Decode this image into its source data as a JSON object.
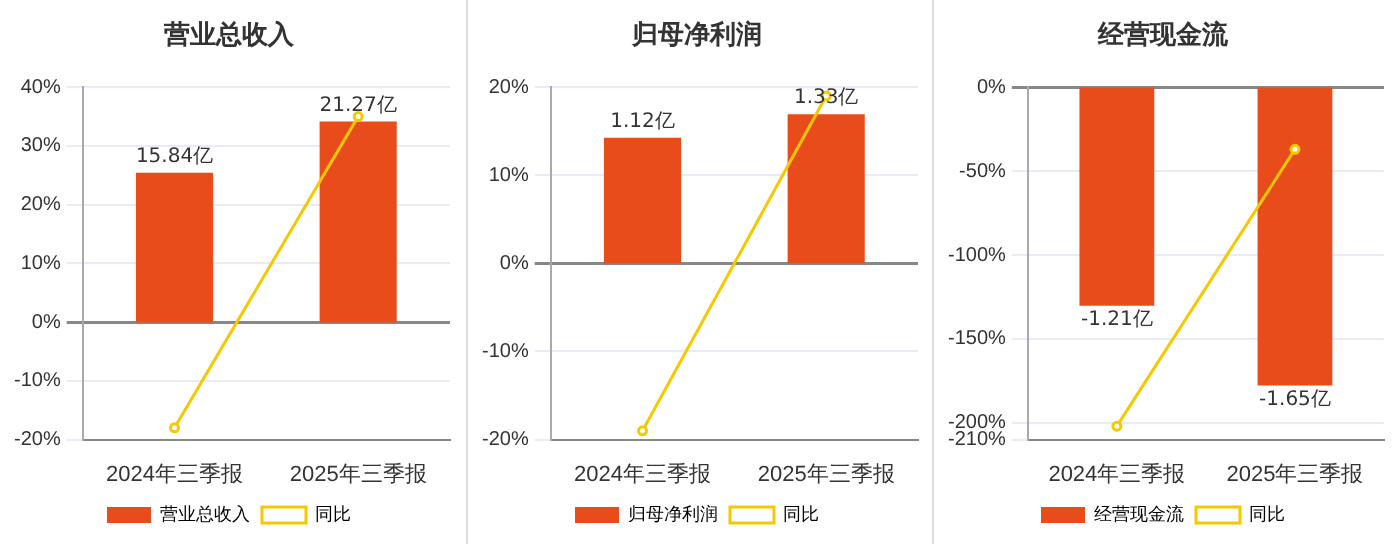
{
  "chart_data": [
    {
      "type": "bar",
      "title": "营业总收入",
      "categories": [
        "2024年三季报",
        "2025年三季报"
      ],
      "series": [
        {
          "name": "营业总收入",
          "axis": "y2",
          "color": "#e84c1a",
          "values": [
            15.84,
            21.27
          ],
          "value_labels": [
            "15.84亿",
            "21.27亿"
          ]
        },
        {
          "name": "同比",
          "type": "line",
          "color": "#f5c800",
          "values": [
            -18,
            35
          ]
        }
      ],
      "ylim": [
        -20,
        40
      ],
      "yticks": [
        {
          "value": -20,
          "label": "-20%"
        },
        {
          "value": -10,
          "label": "-10%"
        },
        {
          "value": 0,
          "label": "0%"
        },
        {
          "value": 10,
          "label": "10%"
        },
        {
          "value": 20,
          "label": "20%"
        },
        {
          "value": 30,
          "label": "30%"
        },
        {
          "value": 40,
          "label": "40%"
        }
      ],
      "y2lim": [
        -12.4,
        24.9
      ],
      "grid": "y",
      "legend": "bottom",
      "marker": "circle"
    },
    {
      "type": "bar",
      "title": "归母净利润",
      "categories": [
        "2024年三季报",
        "2025年三季报"
      ],
      "series": [
        {
          "name": "归母净利润",
          "axis": "y2",
          "color": "#e84c1a",
          "values": [
            1.12,
            1.33
          ],
          "value_labels": [
            "1.12亿",
            "1.33亿"
          ]
        },
        {
          "name": "同比",
          "type": "line",
          "color": "#f5c800",
          "values": [
            -19,
            19
          ]
        }
      ],
      "ylim": [
        -20,
        20
      ],
      "yticks": [
        {
          "value": -20,
          "label": "-20%"
        },
        {
          "value": -10,
          "label": "-10%"
        },
        {
          "value": 0,
          "label": "0%"
        },
        {
          "value": 10,
          "label": "10%"
        },
        {
          "value": 20,
          "label": "20%"
        }
      ],
      "y2lim": [
        -1.57,
        1.57
      ],
      "grid": "y",
      "legend": "bottom",
      "marker": "circle"
    },
    {
      "type": "bar",
      "title": "经营现金流",
      "categories": [
        "2024年三季报",
        "2025年三季报"
      ],
      "series": [
        {
          "name": "经营现金流",
          "axis": "y2",
          "color": "#e84c1a",
          "values": [
            -1.21,
            -1.65
          ],
          "value_labels": [
            "-1.21亿",
            "-1.65亿"
          ]
        },
        {
          "name": "同比",
          "type": "line",
          "color": "#f5c800",
          "values": [
            -202,
            -37
          ]
        }
      ],
      "ylim": [
        -210,
        0
      ],
      "yticks": [
        {
          "value": -210,
          "label": "-210%"
        },
        {
          "value": -200,
          "label": "-200%"
        },
        {
          "value": -150,
          "label": "-150%"
        },
        {
          "value": -100,
          "label": "-100%"
        },
        {
          "value": -50,
          "label": "-50%"
        },
        {
          "value": 0,
          "label": "0%"
        }
      ],
      "y2lim": [
        -1.95,
        0
      ],
      "grid": "y",
      "legend": "bottom",
      "marker": "circle"
    }
  ]
}
